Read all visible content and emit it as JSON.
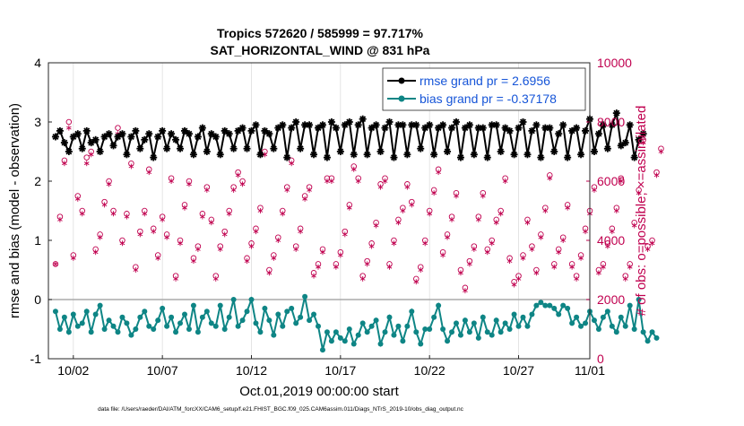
{
  "chart_data": {
    "type": "line",
    "title": "Tropics 572620 / 585999 = 97.717%",
    "subtitle": "SAT_HORIZONTAL_WIND @ 831 hPa",
    "xlabel": "Oct.01,2019 00:00:00 start",
    "ylabel": "rmse and bias (model - observation)",
    "y2label": "# of obs: o=possible; ×=assimilated",
    "footnote": "data file: /Users/raeder/DAI/ATM_forcXX/CAM6_setup/f.e21.FHIST_BGC.f09_025.CAM6assim.011/Diags_NTrS_2019-10/obs_diag_output.nc",
    "xlim": [
      0.6,
      31.0
    ],
    "ylim": [
      -1,
      4
    ],
    "y2lim": [
      0,
      10000
    ],
    "x_ticks": [
      2,
      7,
      12,
      17,
      22,
      27,
      32
    ],
    "x_tick_labels": [
      "10/02",
      "10/07",
      "10/12",
      "10/17",
      "10/22",
      "10/27",
      "11/01"
    ],
    "y_ticks": [
      -1,
      0,
      1,
      2,
      3,
      4
    ],
    "y_tick_labels": [
      "-1",
      "0",
      "1",
      "2",
      "3",
      "4"
    ],
    "y2_ticks": [
      0,
      2000,
      4000,
      6000,
      8000,
      10000
    ],
    "y2_tick_labels": [
      "0",
      "2000",
      "4000",
      "6000",
      "8000",
      "10000"
    ],
    "zero_line": 0,
    "legend_position": "top-right",
    "x_start": 1.0,
    "x_step": 0.25,
    "series": [
      {
        "name": "rmse grand pr = 2.6956",
        "axis": "left",
        "color": "#000000",
        "marker": "star",
        "values": [
          2.75,
          2.85,
          2.65,
          2.5,
          2.75,
          2.8,
          2.55,
          2.85,
          2.65,
          2.7,
          2.5,
          2.75,
          2.8,
          2.6,
          2.75,
          2.8,
          2.45,
          2.75,
          2.85,
          2.55,
          2.7,
          2.8,
          2.4,
          2.75,
          2.85,
          2.55,
          2.8,
          2.7,
          2.55,
          2.85,
          2.8,
          2.45,
          2.75,
          2.9,
          2.5,
          2.8,
          2.75,
          2.45,
          2.85,
          2.8,
          2.55,
          2.85,
          2.9,
          2.55,
          2.85,
          2.95,
          2.45,
          2.85,
          2.8,
          2.55,
          2.9,
          2.95,
          2.4,
          2.9,
          3.0,
          2.55,
          2.95,
          2.95,
          2.45,
          2.9,
          2.95,
          2.4,
          3.0,
          2.9,
          2.5,
          2.95,
          3.0,
          2.45,
          2.95,
          3.05,
          2.45,
          2.9,
          2.95,
          2.5,
          2.9,
          3.0,
          2.4,
          2.95,
          2.95,
          2.45,
          2.95,
          2.95,
          2.55,
          2.9,
          2.95,
          2.45,
          2.9,
          2.95,
          2.5,
          2.9,
          3.0,
          2.4,
          2.9,
          2.95,
          2.45,
          2.9,
          2.9,
          2.4,
          2.95,
          2.95,
          2.5,
          2.9,
          2.85,
          2.45,
          2.9,
          3.0,
          2.45,
          2.85,
          2.95,
          2.4,
          2.9,
          2.9,
          2.5,
          2.8,
          2.95,
          2.4,
          2.85,
          2.9,
          2.45,
          2.85,
          3.05,
          2.5,
          2.8,
          2.95,
          2.55,
          2.95,
          3.15,
          2.6,
          2.65,
          2.95,
          2.4,
          2.7,
          2.8
        ]
      },
      {
        "name": "bias grand pr = -0.37178",
        "axis": "left",
        "color": "#0e8585",
        "marker": "dot",
        "values": [
          -0.2,
          -0.5,
          -0.3,
          -0.55,
          -0.25,
          -0.45,
          -0.4,
          -0.2,
          -0.55,
          -0.25,
          -0.1,
          -0.5,
          -0.35,
          -0.45,
          -0.55,
          -0.3,
          -0.4,
          -0.6,
          -0.5,
          -0.3,
          -0.2,
          -0.45,
          -0.5,
          -0.35,
          -0.15,
          -0.45,
          -0.3,
          -0.55,
          -0.4,
          -0.25,
          -0.5,
          -0.1,
          -0.55,
          -0.3,
          -0.2,
          -0.4,
          -0.45,
          -0.1,
          -0.5,
          -0.3,
          0.0,
          -0.45,
          -0.35,
          -0.2,
          0.0,
          -0.4,
          -0.55,
          -0.15,
          -0.35,
          -0.6,
          -0.25,
          -0.45,
          -0.2,
          -0.15,
          -0.4,
          -0.3,
          0.05,
          -0.35,
          -0.25,
          -0.45,
          -0.85,
          -0.55,
          -0.7,
          -0.55,
          -0.65,
          -0.7,
          -0.5,
          -0.75,
          -0.6,
          -0.4,
          -0.55,
          -0.45,
          -0.35,
          -0.75,
          -0.55,
          -0.3,
          -0.6,
          -0.45,
          -0.7,
          -0.45,
          -0.2,
          -0.55,
          -0.75,
          -0.5,
          -0.5,
          -0.3,
          -0.1,
          -0.5,
          -0.7,
          -0.55,
          -0.4,
          -0.6,
          -0.35,
          -0.55,
          -0.4,
          -0.65,
          -0.3,
          -0.55,
          -0.6,
          -0.35,
          -0.55,
          -0.4,
          -0.5,
          -0.25,
          -0.45,
          -0.3,
          -0.45,
          -0.25,
          -0.1,
          -0.05,
          -0.1,
          -0.1,
          -0.15,
          -0.25,
          -0.1,
          -0.15,
          -0.4,
          -0.3,
          -0.45,
          -0.4,
          -0.2,
          -0.35,
          -0.5,
          -0.3,
          -0.2,
          -0.45,
          -0.55,
          -0.3,
          -0.45,
          -0.1,
          -0.5,
          0.0,
          -0.55,
          -0.7,
          -0.55,
          -0.65
        ]
      }
    ],
    "obs_series": [
      {
        "name": "possible",
        "axis": "right",
        "color": "#c0004f",
        "marker": "o",
        "values": [
          3200,
          4800,
          6700,
          8000,
          3500,
          5500,
          5000,
          6800,
          7000,
          3700,
          4200,
          5300,
          6000,
          5000,
          7800,
          4000,
          4900,
          6600,
          3100,
          4300,
          5000,
          6400,
          4400,
          3500,
          4800,
          4200,
          6100,
          2800,
          4000,
          5200,
          6000,
          3400,
          3800,
          4900,
          5800,
          4700,
          2800,
          3800,
          4300,
          5000,
          5800,
          6300,
          6000,
          3400,
          3900,
          4400,
          5100,
          7000,
          3000,
          3500,
          4100,
          5000,
          5800,
          6700,
          3800,
          4400,
          5500,
          5800,
          2900,
          3200,
          3700,
          6100,
          6100,
          3200,
          3600,
          4300,
          5200,
          6500,
          6100,
          2800,
          3300,
          3900,
          4600,
          5900,
          6100,
          3200,
          4000,
          4700,
          5100,
          5900,
          5300,
          2700,
          3100,
          4000,
          5000,
          5700,
          6400,
          3600,
          4200,
          4800,
          5600,
          3000,
          2400,
          3300,
          3800,
          4800,
          5600,
          3700,
          4000,
          4700,
          5000,
          6100,
          3400,
          2600,
          2800,
          3500,
          4700,
          3800,
          3000,
          4200,
          5100,
          6200,
          3200,
          3700,
          4100,
          5200,
          3200,
          2800,
          3500,
          4400,
          5000,
          5800,
          3000,
          3200,
          3900,
          4400,
          5100,
          6100,
          2800,
          3200,
          4600,
          5700,
          7400,
          3800,
          4000,
          6300,
          7100
        ]
      },
      {
        "name": "assimilated",
        "axis": "right",
        "color": "#c0004f",
        "marker": "star",
        "values": [
          3200,
          4700,
          6600,
          7800,
          3400,
          5400,
          4900,
          6600,
          6900,
          3600,
          4100,
          5200,
          5900,
          4900,
          7600,
          3900,
          4800,
          6500,
          3000,
          4200,
          4900,
          6300,
          4300,
          3400,
          4700,
          4100,
          6000,
          2700,
          3900,
          5100,
          5900,
          3300,
          3700,
          4800,
          5700,
          4600,
          2700,
          3700,
          4200,
          4900,
          5700,
          6200,
          5900,
          3300,
          3800,
          4300,
          5000,
          6900,
          2900,
          3400,
          4000,
          4900,
          5700,
          6600,
          3700,
          4300,
          5400,
          5700,
          2800,
          3100,
          3600,
          6000,
          6000,
          3100,
          3500,
          4200,
          5100,
          6400,
          6000,
          2700,
          3200,
          3800,
          4500,
          5800,
          6000,
          3100,
          3900,
          4600,
          5000,
          5800,
          5200,
          2600,
          3000,
          3900,
          4900,
          5600,
          6300,
          3500,
          4100,
          4700,
          5500,
          2900,
          2300,
          3200,
          3700,
          4700,
          5500,
          3600,
          3900,
          4600,
          4900,
          6000,
          3300,
          2500,
          2700,
          3400,
          4600,
          3700,
          2900,
          4100,
          5000,
          6100,
          3100,
          3600,
          4000,
          5100,
          3100,
          2700,
          3400,
          4300,
          4900,
          5700,
          2900,
          3100,
          3800,
          4300,
          5000,
          6000,
          2700,
          3100,
          4500,
          5600,
          7300,
          3700,
          3900,
          6200,
          7000
        ]
      }
    ]
  }
}
